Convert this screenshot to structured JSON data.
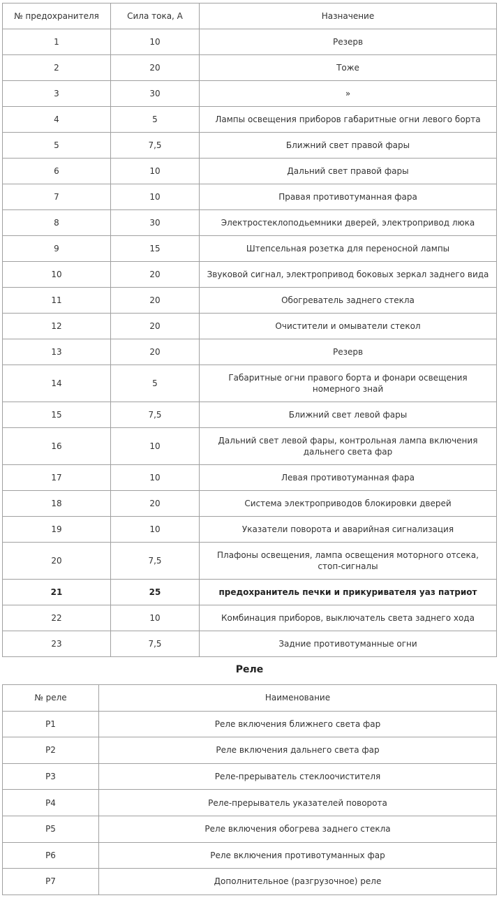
{
  "fuses": {
    "headers": [
      "№ предохранителя",
      "Сила тока, А",
      "Назначение"
    ],
    "rows": [
      [
        "1",
        "10",
        "Резерв"
      ],
      [
        "2",
        "20",
        "Тоже"
      ],
      [
        "3",
        "30",
        "»"
      ],
      [
        "4",
        "5",
        "Лампы освещения приборов габаритные огни левого борта"
      ],
      [
        "5",
        "7,5",
        "Ближний свет правой фары"
      ],
      [
        "6",
        "10",
        "Дальний свет правой фары"
      ],
      [
        "7",
        "10",
        "Правая противотуманная фара"
      ],
      [
        "8",
        "30",
        "Электростеклоподьемники дверей, электропривод люка"
      ],
      [
        "9",
        "15",
        "Штепсельная розетка для переносной лампы"
      ],
      [
        "10",
        "20",
        "Звуковой сигнал, электропривод боковых зеркал заднего вида"
      ],
      [
        "11",
        "20",
        "Обогреватель заднего стекла"
      ],
      [
        "12",
        "20",
        "Очистители и омыватели стекол"
      ],
      [
        "13",
        "20",
        "Резерв"
      ],
      [
        "14",
        "5",
        "Габаритные огни правого борта и фонари освещения номерного знай"
      ],
      [
        "15",
        "7,5",
        "Ближний свет левой фары"
      ],
      [
        "16",
        "10",
        "Дальний свет левой фары, контрольная лампа включения дальнего света фар"
      ],
      [
        "17",
        "10",
        "Левая противотуманная фара"
      ],
      [
        "18",
        "20",
        "Система электроприводов блокировки дверей"
      ],
      [
        "19",
        "10",
        "Указатели поворота и аварийная сигнализация"
      ],
      [
        "20",
        "7,5",
        "Плафоны освещения, лампа освещения моторного отсека, стоп-сигналы"
      ],
      [
        "21",
        "25",
        "предохранитель печки и прикуривателя уаз патриот"
      ],
      [
        "22",
        "10",
        "Комбинация приборов, выключатель света заднего хода"
      ],
      [
        "23",
        "7,5",
        "Задние противотуманные огни"
      ]
    ],
    "tall_rows": [
      13,
      15,
      19
    ],
    "bold_rows": [
      20
    ]
  },
  "relays": {
    "title": "Реле",
    "headers": [
      "№ реле",
      "Наименование"
    ],
    "rows": [
      [
        "P1",
        "Реле включения ближнего света фар"
      ],
      [
        "P2",
        "Реле включения дальнего света фар"
      ],
      [
        "P3",
        "Реле-прерыватель стеклоочистителя"
      ],
      [
        "P4",
        "Реле-прерыватель указателей поворота"
      ],
      [
        "P5",
        "Реле включения обогрева заднего стекла"
      ],
      [
        "P6",
        "Реле включения противотуманных фар"
      ],
      [
        "P7",
        "Дополнительное (разгрузочное) реле"
      ]
    ]
  }
}
